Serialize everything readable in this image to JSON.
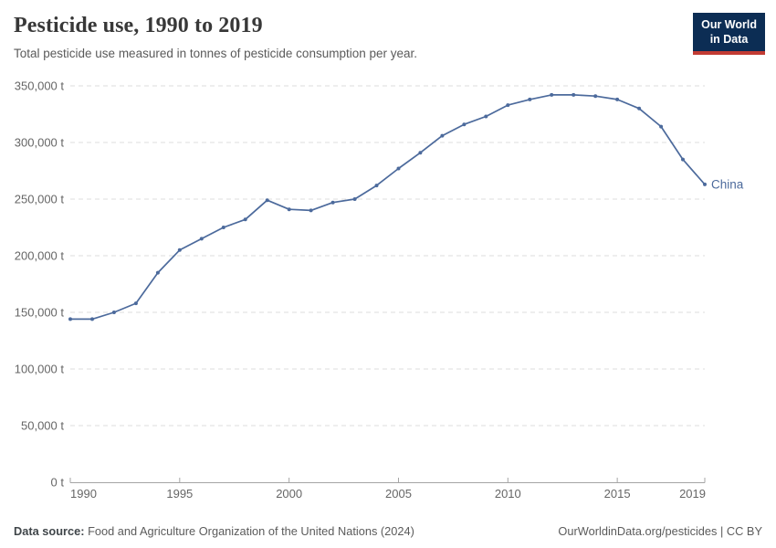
{
  "header": {
    "title": "Pesticide use, 1990 to 2019",
    "subtitle": "Total pesticide use measured in tonnes of pesticide consumption per year."
  },
  "logo": {
    "line1": "Our World",
    "line2": "in Data"
  },
  "footer": {
    "source_label": "Data source:",
    "source_text": " Food and Agriculture Organization of the United Nations (2024)",
    "link_text": "OurWorldinData.org/pesticides | CC BY"
  },
  "colors": {
    "line": "#4C6A9C",
    "entity_label": "#4C6A9C",
    "grid": "#dedede",
    "axis": "#a5a5a5",
    "tick_text": "#666666",
    "logo_bg": "#0c2d54",
    "logo_red": "#c23b33"
  },
  "chart_data": {
    "type": "line",
    "title": "Pesticide use, 1990 to 2019",
    "subtitle": "Total pesticide use measured in tonnes of pesticide consumption per year.",
    "xlabel": "",
    "ylabel": "",
    "unit": "t",
    "grid": "dashed-horizontal",
    "legend_position": "end-of-line-label",
    "xlim": [
      1990,
      2019
    ],
    "ylim": [
      0,
      350000
    ],
    "x": [
      1990,
      1991,
      1992,
      1993,
      1994,
      1995,
      1996,
      1997,
      1998,
      1999,
      2000,
      2001,
      2002,
      2003,
      2004,
      2005,
      2006,
      2007,
      2008,
      2009,
      2010,
      2011,
      2012,
      2013,
      2014,
      2015,
      2016,
      2017,
      2018,
      2019
    ],
    "series": [
      {
        "name": "China",
        "values": [
          144000,
          144000,
          150000,
          158000,
          185000,
          205000,
          215000,
          225000,
          232000,
          249000,
          241000,
          240000,
          247000,
          250000,
          262000,
          277000,
          291000,
          306000,
          316000,
          323000,
          333000,
          338000,
          342000,
          342000,
          341000,
          338000,
          330000,
          314000,
          285000,
          263000
        ]
      }
    ],
    "y_ticks": [
      {
        "value": 0,
        "label": "0 t"
      },
      {
        "value": 50000,
        "label": "50,000 t"
      },
      {
        "value": 100000,
        "label": "100,000 t"
      },
      {
        "value": 150000,
        "label": "150,000 t"
      },
      {
        "value": 200000,
        "label": "200,000 t"
      },
      {
        "value": 250000,
        "label": "250,000 t"
      },
      {
        "value": 300000,
        "label": "300,000 t"
      },
      {
        "value": 350000,
        "label": "350,000 t"
      }
    ],
    "x_ticks": [
      {
        "value": 1990,
        "label": "1990"
      },
      {
        "value": 1995,
        "label": "1995"
      },
      {
        "value": 2000,
        "label": "2000"
      },
      {
        "value": 2005,
        "label": "2005"
      },
      {
        "value": 2010,
        "label": "2010"
      },
      {
        "value": 2015,
        "label": "2015"
      },
      {
        "value": 2019,
        "label": "2019"
      }
    ]
  }
}
